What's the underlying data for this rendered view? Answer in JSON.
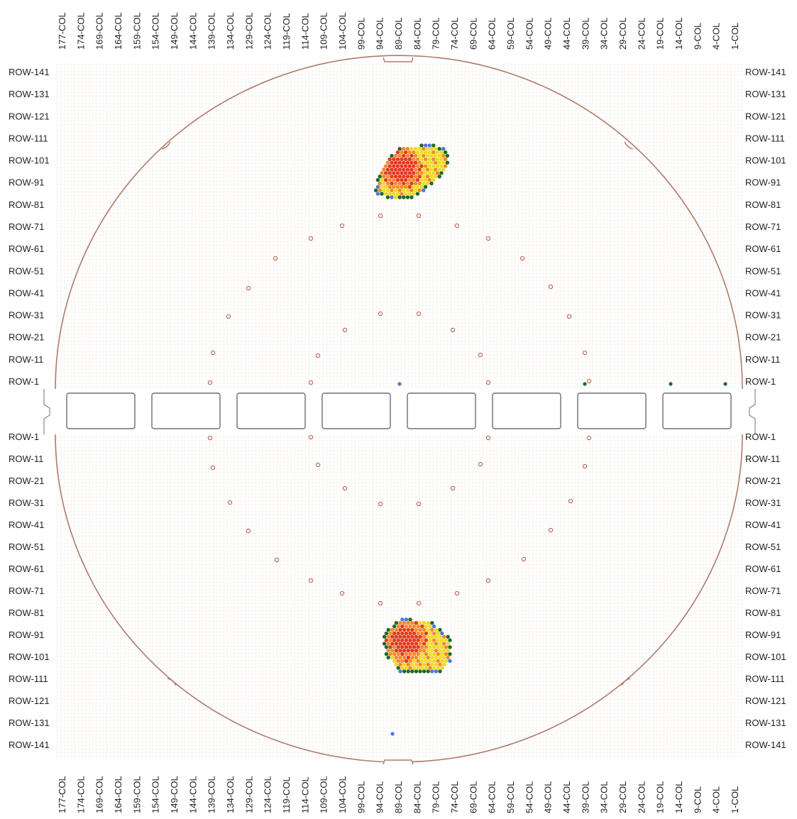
{
  "map": {
    "column_labels": [
      "177-COL",
      "174-COL",
      "169-COL",
      "164-COL",
      "159-COL",
      "154-COL",
      "149-COL",
      "144-COL",
      "139-COL",
      "134-COL",
      "129-COL",
      "124-COL",
      "119-COL",
      "114-COL",
      "109-COL",
      "104-COL",
      "99-COL",
      "94-COL",
      "89-COL",
      "84-COL",
      "79-COL",
      "74-COL",
      "69-COL",
      "64-COL",
      "59-COL",
      "54-COL",
      "49-COL",
      "44-COL",
      "39-COL",
      "34-COL",
      "29-COL",
      "24-COL",
      "19-COL",
      "14-COL",
      "9-COL",
      "4-COL",
      "1-COL"
    ],
    "upper_row_labels": [
      "ROW-141",
      "ROW-131",
      "ROW-121",
      "ROW-111",
      "ROW-101",
      "ROW-91",
      "ROW-81",
      "ROW-71",
      "ROW-61",
      "ROW-51",
      "ROW-41",
      "ROW-31",
      "ROW-21",
      "ROW-11",
      "ROW-1"
    ],
    "lower_row_labels": [
      "ROW-1",
      "ROW-11",
      "ROW-21",
      "ROW-31",
      "ROW-41",
      "ROW-51",
      "ROW-61",
      "ROW-71",
      "ROW-81",
      "ROW-91",
      "ROW-101",
      "ROW-111",
      "ROW-121",
      "ROW-131",
      "ROW-141"
    ],
    "colors": {
      "outline": "#b07a6a",
      "grid": "#e8e0d8",
      "marker": "#c0604a",
      "defect_red": "#e03a1e",
      "defect_orange": "#f08a2a",
      "defect_yellow": "#f0d828",
      "defect_green": "#1e6a2a",
      "defect_blue": "#4a7ad8",
      "cell_border": "#555555"
    },
    "separator_cell_count": 8
  }
}
